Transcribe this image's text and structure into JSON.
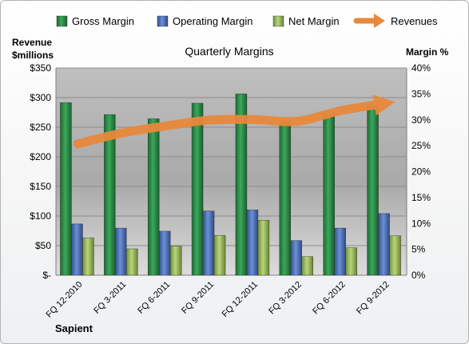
{
  "chart_data": {
    "type": "bar",
    "title": "Quarterly Margins",
    "company": "Sapient",
    "ylabel_left": [
      "Revenue",
      "$millions"
    ],
    "ylabel_right": "Margin %",
    "categories": [
      "FQ 12-2010",
      "FQ 3-2011",
      "FQ 6-2011",
      "FQ 9-2011",
      "FQ 12-2011",
      "FQ 3-2012",
      "FQ 6-2012",
      "FQ 9-2012"
    ],
    "ylim_left": [
      0,
      350
    ],
    "ylim_right": [
      0,
      40
    ],
    "left_ticks": [
      "$-",
      "$50",
      "$100",
      "$150",
      "$200",
      "$250",
      "$300",
      "$350"
    ],
    "right_ticks": [
      "0%",
      "5%",
      "10%",
      "15%",
      "20%",
      "25%",
      "30%",
      "35%",
      "40%"
    ],
    "series": [
      {
        "name": "Gross Margin",
        "axis": "right",
        "kind": "bar",
        "color": "#2e8b47",
        "values": [
          33.3,
          31.0,
          30.2,
          33.2,
          35.0,
          29.7,
          31.1,
          32.7
        ]
      },
      {
        "name": "Operating Margin",
        "axis": "right",
        "kind": "bar",
        "color": "#4a6ebf",
        "values": [
          9.9,
          9.1,
          8.5,
          12.4,
          12.6,
          6.7,
          9.1,
          11.9
        ]
      },
      {
        "name": "Net Margin",
        "axis": "right",
        "kind": "bar",
        "color": "#9bbb59",
        "values": [
          7.2,
          5.1,
          5.6,
          7.7,
          10.6,
          3.6,
          5.3,
          7.6
        ]
      },
      {
        "name": "Revenues",
        "axis": "left",
        "kind": "line",
        "color": "#e8883b",
        "values": [
          222,
          240,
          252,
          262,
          263,
          260,
          278,
          290
        ]
      }
    ],
    "legend": "top",
    "grid": true
  }
}
